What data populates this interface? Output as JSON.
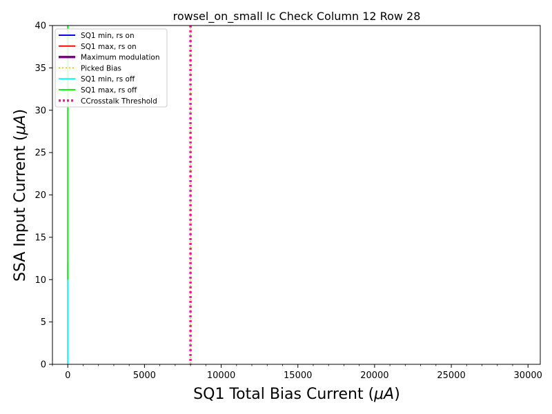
{
  "chart_data": {
    "type": "line",
    "title": "rowsel_on_small Ic Check Column 12 Row 28",
    "xlabel": "SQ1 Total Bias Current (",
    "xlabel_unit": "μA",
    "xlabel_close": ")",
    "ylabel": "SSA Input Current (",
    "ylabel_unit": "μA",
    "ylabel_close": ")",
    "xlim": [
      -1000,
      30800
    ],
    "ylim": [
      0,
      40
    ],
    "xticks": [
      0,
      5000,
      10000,
      15000,
      20000,
      25000,
      30000
    ],
    "yticks": [
      0,
      5,
      10,
      15,
      20,
      25,
      30,
      35,
      40
    ],
    "legend_position": "upper-left",
    "series": [
      {
        "name": "SQ1 min, rs on",
        "color": "#0000ff",
        "style": "solid",
        "x": [],
        "y": []
      },
      {
        "name": "SQ1 max, rs on",
        "color": "#ff0000",
        "style": "solid",
        "x": [],
        "y": []
      },
      {
        "name": "Maximum modulation",
        "color": "#800080",
        "style": "solid-thick",
        "x": [],
        "y": []
      },
      {
        "name": "Picked Bias",
        "color": "#ffa500",
        "style": "dotted",
        "vline_x": 8000
      },
      {
        "name": "SQ1 min, rs off",
        "color": "#00ffff",
        "style": "solid",
        "x": [
          0,
          0,
          0,
          0
        ],
        "y": [
          0,
          6,
          10,
          12
        ]
      },
      {
        "name": "SQ1 max, rs off",
        "color": "#00ff00",
        "style": "solid",
        "x": [
          0,
          0,
          0
        ],
        "y": [
          10,
          25,
          40
        ]
      },
      {
        "name": "CCrosstalk Threshold",
        "color": "#ff1493",
        "style": "dotted-thick",
        "vline_x": 8000
      }
    ]
  }
}
